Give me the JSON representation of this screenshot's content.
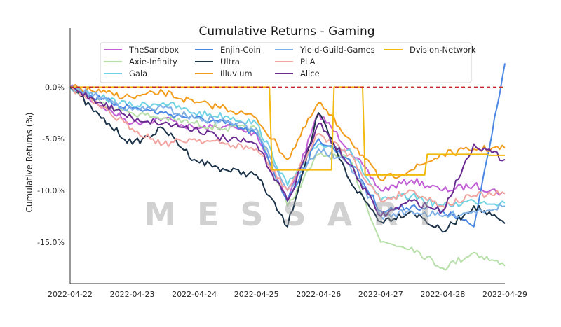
{
  "chart_data": {
    "type": "line",
    "title": "Cumulative Returns - Gaming",
    "xlabel": "",
    "ylabel": "Cumulative Returns (%)",
    "x_ticks": [
      "2022-04-22",
      "2022-04-23",
      "2022-04-24",
      "2022-04-25",
      "2022-04-26",
      "2022-04-27",
      "2022-04-28",
      "2022-04-29"
    ],
    "y_ticks": [
      "0.0%",
      "-5.0%",
      "-10.0%",
      "-15.0%"
    ],
    "y_tick_values": [
      0,
      -5,
      -10,
      -15
    ],
    "ylim": [
      -19,
      4.7
    ],
    "xlim": [
      "2022-04-22",
      "2022-04-29"
    ],
    "reference_line": {
      "y": 0,
      "style": "dashed",
      "color": "#c62828"
    },
    "grid": false,
    "legend_position": "top",
    "watermark": "MESSARI",
    "series": [
      {
        "name": "TheSandbox",
        "color": "#c25fd6",
        "x": [
          "2022-04-22",
          "2022-04-22 12:00",
          "2022-04-23",
          "2022-04-23 12:00",
          "2022-04-24",
          "2022-04-24 12:00",
          "2022-04-25",
          "2022-04-25 12:00",
          "2022-04-26",
          "2022-04-26 12:00",
          "2022-04-27",
          "2022-04-27 12:00",
          "2022-04-28",
          "2022-04-28 12:00",
          "2022-04-29"
        ],
        "values": [
          0.0,
          -1.8,
          -3.5,
          -3.0,
          -4.0,
          -3.8,
          -4.5,
          -11.0,
          -2.5,
          -6.0,
          -10.0,
          -9.0,
          -10.0,
          -9.5,
          -10.3
        ]
      },
      {
        "name": "Axie-Infinity",
        "color": "#b7dfa8",
        "x": [
          "2022-04-22",
          "2022-04-22 12:00",
          "2022-04-23",
          "2022-04-23 12:00",
          "2022-04-24",
          "2022-04-24 12:00",
          "2022-04-25",
          "2022-04-25 12:00",
          "2022-04-26",
          "2022-04-26 12:00",
          "2022-04-27",
          "2022-04-27 12:00",
          "2022-04-28",
          "2022-04-28 12:00",
          "2022-04-29"
        ],
        "values": [
          0.0,
          -1.5,
          -2.5,
          -3.0,
          -3.5,
          -4.0,
          -4.0,
          -11.5,
          -6.5,
          -7.0,
          -15.0,
          -15.5,
          -17.5,
          -16.0,
          -17.3
        ]
      },
      {
        "name": "Gala",
        "color": "#6fd3e3",
        "x": [
          "2022-04-22",
          "2022-04-22 12:00",
          "2022-04-23",
          "2022-04-23 12:00",
          "2022-04-24",
          "2022-04-24 12:00",
          "2022-04-25",
          "2022-04-25 12:00",
          "2022-04-26",
          "2022-04-26 12:00",
          "2022-04-27",
          "2022-04-27 12:00",
          "2022-04-28",
          "2022-04-28 12:00",
          "2022-04-29"
        ],
        "values": [
          0.0,
          -1.0,
          -1.8,
          -1.5,
          -2.5,
          -2.8,
          -3.5,
          -9.5,
          -5.5,
          -6.0,
          -11.0,
          -10.5,
          -11.5,
          -11.0,
          -11.2
        ]
      },
      {
        "name": "Enjin-Coin",
        "color": "#4b87e3",
        "x": [
          "2022-04-22",
          "2022-04-22 12:00",
          "2022-04-23",
          "2022-04-23 12:00",
          "2022-04-24",
          "2022-04-24 12:00",
          "2022-04-25",
          "2022-04-25 12:00",
          "2022-04-26",
          "2022-04-26 12:00",
          "2022-04-27",
          "2022-04-27 12:00",
          "2022-04-28",
          "2022-04-28 12:00",
          "2022-04-29"
        ],
        "values": [
          0.0,
          -1.2,
          -2.0,
          -2.5,
          -3.0,
          -3.5,
          -4.5,
          -11.0,
          -5.0,
          -7.0,
          -12.0,
          -11.5,
          -12.0,
          -13.5,
          2.3
        ]
      },
      {
        "name": "Ultra",
        "color": "#1c3349",
        "x": [
          "2022-04-22",
          "2022-04-22 12:00",
          "2022-04-23",
          "2022-04-23 12:00",
          "2022-04-24",
          "2022-04-24 12:00",
          "2022-04-25",
          "2022-04-25 12:00",
          "2022-04-26",
          "2022-04-26 12:00",
          "2022-04-27",
          "2022-04-27 12:00",
          "2022-04-28",
          "2022-04-28 12:00",
          "2022-04-29"
        ],
        "values": [
          0.0,
          -3.0,
          -5.5,
          -4.0,
          -7.0,
          -8.0,
          -8.5,
          -13.5,
          -2.5,
          -9.0,
          -13.0,
          -12.0,
          -14.0,
          -11.5,
          -13.2
        ]
      },
      {
        "name": "Illuvium",
        "color": "#f39c1b",
        "x": [
          "2022-04-22",
          "2022-04-22 12:00",
          "2022-04-23",
          "2022-04-23 12:00",
          "2022-04-24",
          "2022-04-24 12:00",
          "2022-04-25",
          "2022-04-25 12:00",
          "2022-04-26",
          "2022-04-26 12:00",
          "2022-04-27",
          "2022-04-27 12:00",
          "2022-04-28",
          "2022-04-28 12:00",
          "2022-04-29"
        ],
        "values": [
          0.0,
          -0.5,
          -1.0,
          -0.5,
          -1.5,
          -2.0,
          -3.0,
          -7.0,
          -1.5,
          -5.0,
          -9.0,
          -8.0,
          -6.5,
          -6.0,
          -5.9
        ]
      },
      {
        "name": "Yield-Guild-Games",
        "color": "#7fb0e6",
        "x": [
          "2022-04-22",
          "2022-04-22 12:00",
          "2022-04-23",
          "2022-04-23 12:00",
          "2022-04-24",
          "2022-04-24 12:00",
          "2022-04-25",
          "2022-04-25 12:00",
          "2022-04-26",
          "2022-04-26 12:00",
          "2022-04-27",
          "2022-04-27 12:00",
          "2022-04-28",
          "2022-04-28 12:00",
          "2022-04-29"
        ],
        "values": [
          0.0,
          -1.0,
          -2.2,
          -2.0,
          -3.0,
          -3.3,
          -4.0,
          -10.0,
          -6.0,
          -7.5,
          -12.5,
          -12.0,
          -12.5,
          -12.0,
          -11.5
        ]
      },
      {
        "name": "PLA",
        "color": "#f1a4a0",
        "x": [
          "2022-04-22",
          "2022-04-22 12:00",
          "2022-04-23",
          "2022-04-23 12:00",
          "2022-04-24",
          "2022-04-24 12:00",
          "2022-04-25",
          "2022-04-25 12:00",
          "2022-04-26",
          "2022-04-26 12:00",
          "2022-04-27",
          "2022-04-27 12:00",
          "2022-04-28",
          "2022-04-28 12:00",
          "2022-04-29"
        ],
        "values": [
          0.0,
          -2.0,
          -4.0,
          -5.5,
          -5.0,
          -5.5,
          -6.0,
          -10.0,
          -4.5,
          -6.5,
          -11.0,
          -10.0,
          -11.5,
          -10.5,
          -10.3
        ]
      },
      {
        "name": "Alice",
        "color": "#6a2c91",
        "x": [
          "2022-04-22",
          "2022-04-22 12:00",
          "2022-04-23",
          "2022-04-23 12:00",
          "2022-04-24",
          "2022-04-24 12:00",
          "2022-04-25",
          "2022-04-25 12:00",
          "2022-04-26",
          "2022-04-26 12:00",
          "2022-04-27",
          "2022-04-27 12:00",
          "2022-04-28",
          "2022-04-28 12:00",
          "2022-04-29"
        ],
        "values": [
          0.0,
          -1.5,
          -3.0,
          -3.5,
          -4.0,
          -5.0,
          -5.5,
          -11.0,
          -3.5,
          -7.5,
          -12.5,
          -11.0,
          -12.0,
          -5.5,
          -7.0
        ]
      },
      {
        "name": "Dvision-Network",
        "color": "#f2b90f",
        "x": [
          "2022-04-22",
          "2022-04-22 12:00",
          "2022-04-23",
          "2022-04-23 12:00",
          "2022-04-24",
          "2022-04-24 12:00",
          "2022-04-25",
          "2022-04-25 12:00",
          "2022-04-26",
          "2022-04-26 12:00",
          "2022-04-27",
          "2022-04-27 12:00",
          "2022-04-28",
          "2022-04-28 12:00",
          "2022-04-29"
        ],
        "values": [
          0.0,
          0.0,
          0.0,
          0.0,
          0.0,
          0.0,
          0.0,
          -8.0,
          -8.0,
          0.0,
          -8.5,
          -8.5,
          -6.5,
          -6.5,
          -6.6
        ]
      }
    ]
  }
}
